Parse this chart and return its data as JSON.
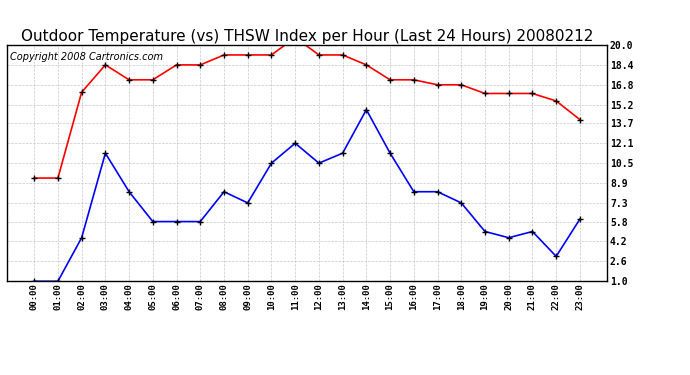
{
  "title": "Outdoor Temperature (vs) THSW Index per Hour (Last 24 Hours) 20080212",
  "copyright": "Copyright 2008 Cartronics.com",
  "x_labels": [
    "00:00",
    "01:00",
    "02:00",
    "03:00",
    "04:00",
    "05:00",
    "06:00",
    "07:00",
    "08:00",
    "09:00",
    "10:00",
    "11:00",
    "12:00",
    "13:00",
    "14:00",
    "15:00",
    "16:00",
    "17:00",
    "18:00",
    "19:00",
    "20:00",
    "21:00",
    "22:00",
    "23:00"
  ],
  "red_data": [
    9.3,
    9.3,
    16.2,
    18.4,
    17.2,
    17.2,
    18.4,
    18.4,
    19.2,
    19.2,
    19.2,
    20.6,
    19.2,
    19.2,
    18.4,
    17.2,
    17.2,
    16.8,
    16.8,
    16.1,
    16.1,
    16.1,
    15.5,
    14.0
  ],
  "blue_data": [
    1.0,
    1.0,
    4.5,
    11.3,
    8.2,
    5.8,
    5.8,
    5.8,
    8.2,
    7.3,
    10.5,
    12.1,
    10.5,
    11.3,
    14.8,
    11.3,
    8.2,
    8.2,
    7.3,
    5.0,
    4.5,
    5.0,
    3.0,
    6.0
  ],
  "ylim": [
    1.0,
    20.0
  ],
  "yticks": [
    1.0,
    2.6,
    4.2,
    5.8,
    7.3,
    8.9,
    10.5,
    12.1,
    13.7,
    15.2,
    16.8,
    18.4,
    20.0
  ],
  "red_color": "#ff0000",
  "blue_color": "#0000ff",
  "bg_color": "#ffffff",
  "grid_color": "#bbbbbb",
  "title_fontsize": 11,
  "copyright_fontsize": 7
}
